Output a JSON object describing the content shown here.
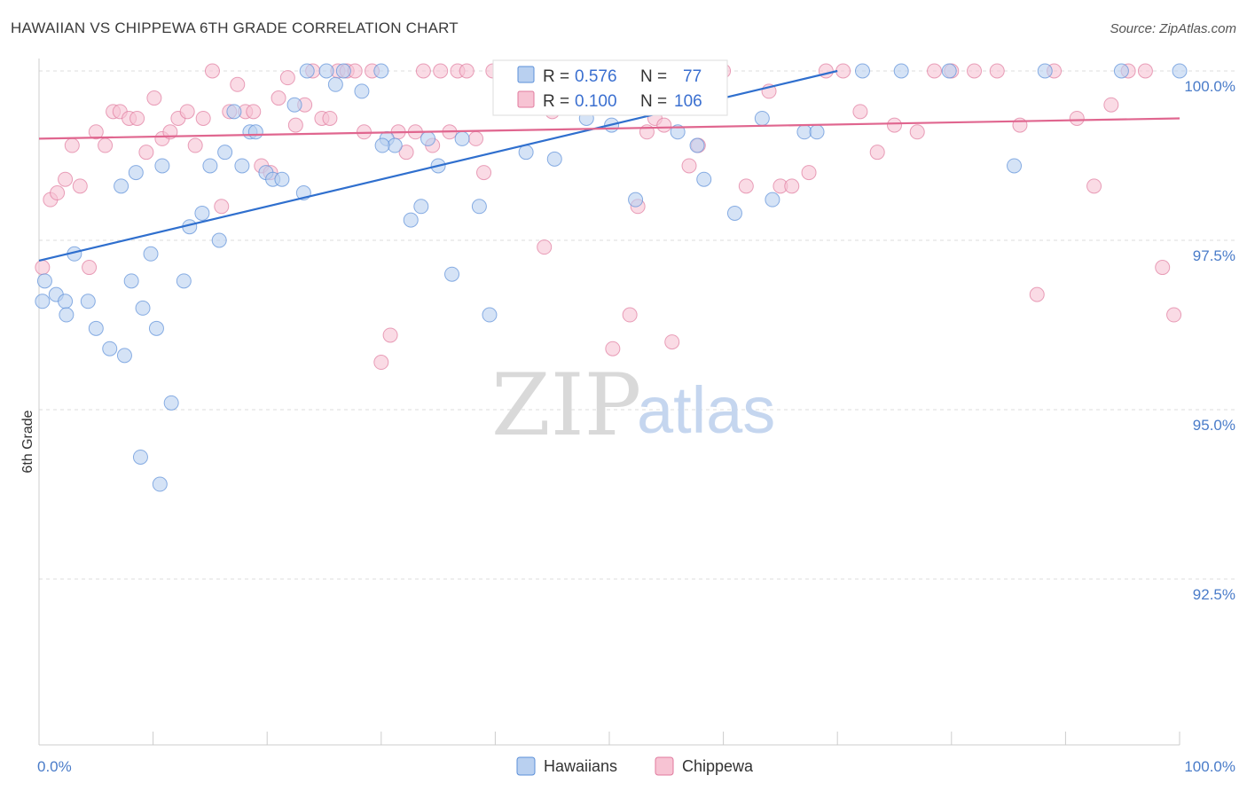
{
  "title": "HAWAIIAN VS CHIPPEWA 6TH GRADE CORRELATION CHART",
  "source": "Source: ZipAtlas.com",
  "watermark": {
    "zip": "ZIP",
    "atlas": "atlas"
  },
  "chart_data": {
    "type": "scatter",
    "ylabel": "6th Grade",
    "xlim": [
      0,
      100
    ],
    "ylim": [
      90.0,
      100.4
    ],
    "x_tick_labels": [
      "0.0%",
      "100.0%"
    ],
    "y_ticks": [
      {
        "value": 100.0,
        "label": "100.0%"
      },
      {
        "value": 97.5,
        "label": "97.5%"
      },
      {
        "value": 95.0,
        "label": "95.0%"
      },
      {
        "value": 92.5,
        "label": "92.5%"
      }
    ],
    "colors": {
      "hawaiians": "#5b8fd9",
      "hawaiians_fill": "#b9d0f0",
      "chippewa": "#e07a9e",
      "chippewa_fill": "#f7c3d3"
    },
    "legend": {
      "r_label": "R =",
      "n_label": "N =",
      "rows": [
        {
          "r": "0.576",
          "n": "77"
        },
        {
          "r": "0.100",
          "n": "106"
        }
      ]
    },
    "series": [
      {
        "name": "Hawaiians",
        "trend": {
          "x": [
            0,
            70
          ],
          "y": [
            97.2,
            100.0
          ]
        },
        "points": [
          [
            0.5,
            96.9
          ],
          [
            1.5,
            96.7
          ],
          [
            2.3,
            96.6
          ],
          [
            3.1,
            97.3
          ],
          [
            4.3,
            96.6
          ],
          [
            5.0,
            96.2
          ],
          [
            2.4,
            96.4
          ],
          [
            6.2,
            95.9
          ],
          [
            7.5,
            95.8
          ],
          [
            8.1,
            96.9
          ],
          [
            9.1,
            96.5
          ],
          [
            10.3,
            96.2
          ],
          [
            8.9,
            94.3
          ],
          [
            10.6,
            93.9
          ],
          [
            11.6,
            95.1
          ],
          [
            7.2,
            98.3
          ],
          [
            8.5,
            98.5
          ],
          [
            9.8,
            97.3
          ],
          [
            10.8,
            98.6
          ],
          [
            12.7,
            96.9
          ],
          [
            13.2,
            97.7
          ],
          [
            14.3,
            97.9
          ],
          [
            15.0,
            98.6
          ],
          [
            16.3,
            98.8
          ],
          [
            15.8,
            97.5
          ],
          [
            17.1,
            99.4
          ],
          [
            17.8,
            98.6
          ],
          [
            18.5,
            99.1
          ],
          [
            19.9,
            98.5
          ],
          [
            20.5,
            98.4
          ],
          [
            21.3,
            98.4
          ],
          [
            22.4,
            99.5
          ],
          [
            23.2,
            98.2
          ],
          [
            19.0,
            99.1
          ],
          [
            25.2,
            100.0
          ],
          [
            26.7,
            100.0
          ],
          [
            26.0,
            99.8
          ],
          [
            28.3,
            99.7
          ],
          [
            30.5,
            99.0
          ],
          [
            31.2,
            98.9
          ],
          [
            30.1,
            98.9
          ],
          [
            32.6,
            97.8
          ],
          [
            33.5,
            98.0
          ],
          [
            35.0,
            98.6
          ],
          [
            36.2,
            97.0
          ],
          [
            34.1,
            99.0
          ],
          [
            37.1,
            99.0
          ],
          [
            38.6,
            98.0
          ],
          [
            39.5,
            96.4
          ],
          [
            40.5,
            99.8
          ],
          [
            41.3,
            99.5
          ],
          [
            42.7,
            98.8
          ],
          [
            44.3,
            99.8
          ],
          [
            45.2,
            98.7
          ],
          [
            46.1,
            100.0
          ],
          [
            48.0,
            99.3
          ],
          [
            50.2,
            99.2
          ],
          [
            52.3,
            98.1
          ],
          [
            53.6,
            99.7
          ],
          [
            56.0,
            99.1
          ],
          [
            57.7,
            98.9
          ],
          [
            58.3,
            98.4
          ],
          [
            61.0,
            97.9
          ],
          [
            63.4,
            99.3
          ],
          [
            64.3,
            98.1
          ],
          [
            67.1,
            99.1
          ],
          [
            68.2,
            99.1
          ],
          [
            72.2,
            100.0
          ],
          [
            75.6,
            100.0
          ],
          [
            79.8,
            100.0
          ],
          [
            85.5,
            98.6
          ],
          [
            88.2,
            100.0
          ],
          [
            94.9,
            100.0
          ],
          [
            23.5,
            100.0
          ],
          [
            30.0,
            100.0
          ],
          [
            100.0,
            100.0
          ],
          [
            0.3,
            96.6
          ]
        ]
      },
      {
        "name": "Chippewa",
        "trend": {
          "x": [
            0,
            100
          ],
          "y": [
            99.0,
            99.3
          ]
        },
        "points": [
          [
            0.3,
            97.1
          ],
          [
            1.0,
            98.1
          ],
          [
            1.6,
            98.2
          ],
          [
            2.3,
            98.4
          ],
          [
            2.9,
            98.9
          ],
          [
            3.6,
            98.3
          ],
          [
            4.4,
            97.1
          ],
          [
            5.0,
            99.1
          ],
          [
            5.8,
            98.9
          ],
          [
            6.5,
            99.4
          ],
          [
            7.1,
            99.4
          ],
          [
            7.9,
            99.3
          ],
          [
            8.6,
            99.3
          ],
          [
            9.4,
            98.8
          ],
          [
            10.1,
            99.6
          ],
          [
            10.8,
            99.0
          ],
          [
            11.5,
            99.1
          ],
          [
            12.2,
            99.3
          ],
          [
            13.0,
            99.4
          ],
          [
            13.7,
            98.9
          ],
          [
            14.4,
            99.3
          ],
          [
            15.2,
            100.0
          ],
          [
            16.0,
            98.0
          ],
          [
            16.7,
            99.4
          ],
          [
            17.4,
            99.8
          ],
          [
            18.1,
            99.4
          ],
          [
            18.8,
            99.4
          ],
          [
            19.5,
            98.6
          ],
          [
            20.3,
            98.5
          ],
          [
            21.0,
            99.6
          ],
          [
            21.8,
            99.9
          ],
          [
            22.5,
            99.2
          ],
          [
            23.3,
            99.5
          ],
          [
            24.0,
            100.0
          ],
          [
            24.8,
            99.3
          ],
          [
            25.5,
            99.3
          ],
          [
            26.2,
            100.0
          ],
          [
            27.0,
            100.0
          ],
          [
            27.7,
            100.0
          ],
          [
            28.5,
            99.1
          ],
          [
            29.2,
            100.0
          ],
          [
            30.0,
            95.7
          ],
          [
            30.8,
            96.1
          ],
          [
            31.5,
            99.1
          ],
          [
            32.2,
            98.8
          ],
          [
            33.0,
            99.1
          ],
          [
            33.7,
            100.0
          ],
          [
            34.5,
            98.9
          ],
          [
            35.2,
            100.0
          ],
          [
            36.0,
            99.1
          ],
          [
            36.7,
            100.0
          ],
          [
            37.5,
            100.0
          ],
          [
            38.3,
            99.0
          ],
          [
            39.0,
            98.5
          ],
          [
            39.8,
            100.0
          ],
          [
            40.5,
            100.0
          ],
          [
            41.3,
            100.0
          ],
          [
            42.0,
            99.7
          ],
          [
            42.8,
            100.0
          ],
          [
            43.5,
            100.0
          ],
          [
            44.3,
            97.4
          ],
          [
            45.0,
            99.4
          ],
          [
            45.8,
            100.0
          ],
          [
            46.5,
            100.0
          ],
          [
            47.3,
            99.5
          ],
          [
            48.0,
            100.0
          ],
          [
            48.8,
            100.0
          ],
          [
            49.5,
            100.0
          ],
          [
            50.3,
            95.9
          ],
          [
            51.0,
            100.0
          ],
          [
            51.8,
            96.4
          ],
          [
            52.5,
            98.0
          ],
          [
            53.3,
            99.1
          ],
          [
            54.0,
            99.3
          ],
          [
            54.8,
            99.2
          ],
          [
            55.5,
            96.0
          ],
          [
            56.3,
            100.0
          ],
          [
            57.0,
            98.6
          ],
          [
            57.8,
            98.9
          ],
          [
            58.5,
            100.0
          ],
          [
            60.0,
            100.0
          ],
          [
            62.0,
            98.3
          ],
          [
            64.0,
            99.7
          ],
          [
            65.0,
            98.3
          ],
          [
            66.0,
            98.3
          ],
          [
            67.5,
            98.5
          ],
          [
            69.0,
            100.0
          ],
          [
            70.5,
            100.0
          ],
          [
            72.0,
            99.4
          ],
          [
            73.5,
            98.8
          ],
          [
            75.0,
            99.2
          ],
          [
            77.0,
            99.1
          ],
          [
            78.5,
            100.0
          ],
          [
            80.0,
            100.0
          ],
          [
            82.0,
            100.0
          ],
          [
            84.0,
            100.0
          ],
          [
            86.0,
            99.2
          ],
          [
            87.5,
            96.7
          ],
          [
            89.0,
            100.0
          ],
          [
            91.0,
            99.3
          ],
          [
            92.5,
            98.3
          ],
          [
            94.0,
            99.5
          ],
          [
            95.5,
            100.0
          ],
          [
            97.0,
            100.0
          ],
          [
            98.5,
            97.1
          ],
          [
            99.5,
            96.4
          ]
        ]
      }
    ]
  },
  "bottom_legend": [
    {
      "label": "Hawaiians"
    },
    {
      "label": "Chippewa"
    }
  ]
}
